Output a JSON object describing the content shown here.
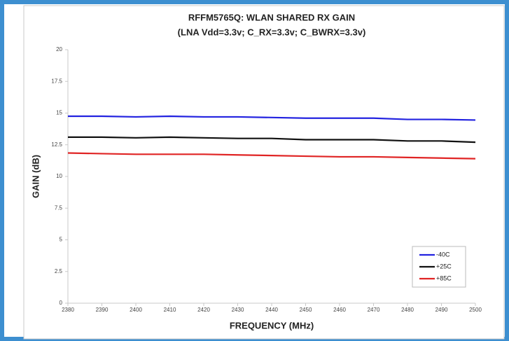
{
  "chart_data": {
    "type": "line",
    "title": "RFFM5765Q: WLAN SHARED RX GAIN",
    "subtitle": "(LNA Vdd=3.3v; C_RX=3.3v; C_BWRX=3.3v)",
    "x_label": "FREQUENCY (MHz)",
    "y_label": "GAIN (dB)",
    "x": [
      2380,
      2390,
      2400,
      2410,
      2420,
      2430,
      2440,
      2450,
      2460,
      2470,
      2480,
      2490,
      2500
    ],
    "series": [
      {
        "name": "-40C",
        "color": "#2323e0",
        "values": [
          14.75,
          14.75,
          14.7,
          14.75,
          14.7,
          14.7,
          14.65,
          14.6,
          14.6,
          14.6,
          14.5,
          14.5,
          14.45
        ]
      },
      {
        "name": "+25C",
        "color": "#111111",
        "values": [
          13.1,
          13.1,
          13.05,
          13.1,
          13.05,
          13.0,
          13.0,
          12.9,
          12.9,
          12.9,
          12.8,
          12.8,
          12.7
        ]
      },
      {
        "name": "+85C",
        "color": "#e02424",
        "values": [
          11.85,
          11.8,
          11.75,
          11.75,
          11.75,
          11.7,
          11.65,
          11.6,
          11.55,
          11.55,
          11.5,
          11.45,
          11.4
        ]
      }
    ],
    "xlim": [
      2380,
      2500
    ],
    "xticks": [
      2380,
      2390,
      2400,
      2410,
      2420,
      2430,
      2440,
      2450,
      2460,
      2470,
      2480,
      2490,
      2500
    ],
    "ylim": [
      0,
      20
    ],
    "yticks": [
      0,
      2.5,
      5,
      7.5,
      10,
      12.5,
      15,
      17.5,
      20
    ],
    "grid": false,
    "legend": "lower right"
  }
}
